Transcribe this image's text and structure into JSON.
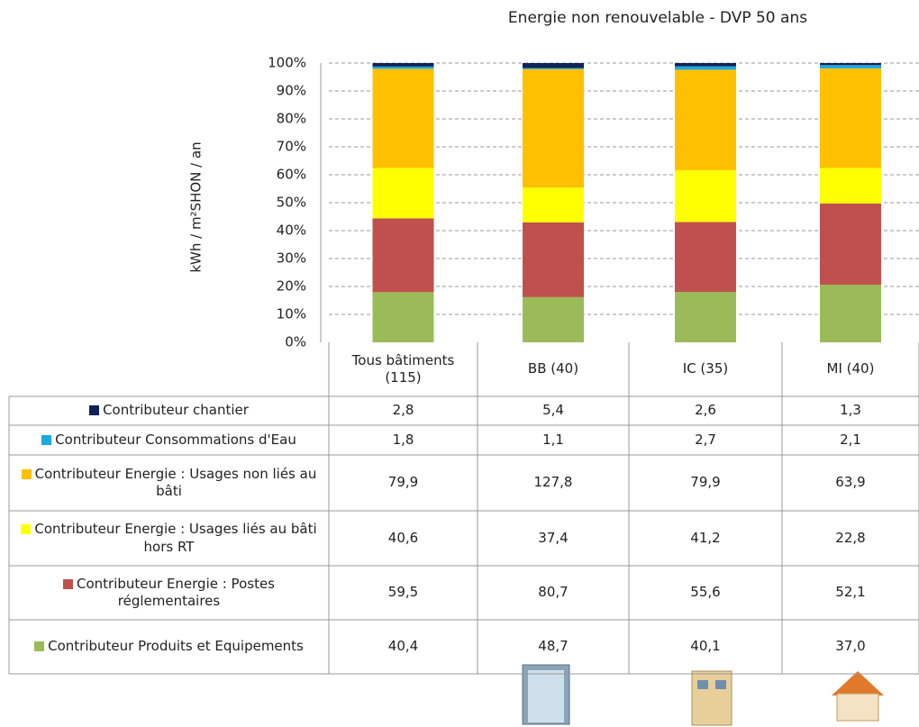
{
  "chart_data": {
    "type": "bar",
    "stacking": "percent",
    "title": "Energie non renouvelable  - DVP 50 ans",
    "y_axis_label": "kWh / m²SHON / an",
    "categories": [
      "Tous bâtiments (115)",
      "BB (40)",
      "IC (35)",
      "MI (40)"
    ],
    "ylim": [
      0,
      100
    ],
    "yticks": [
      {
        "value": 0,
        "label": "0%"
      },
      {
        "value": 10,
        "label": "10%"
      },
      {
        "value": 20,
        "label": "20%"
      },
      {
        "value": 30,
        "label": "30%"
      },
      {
        "value": 40,
        "label": "40%"
      },
      {
        "value": 50,
        "label": "50%"
      },
      {
        "value": 60,
        "label": "60%"
      },
      {
        "value": 70,
        "label": "70%"
      },
      {
        "value": 80,
        "label": "80%"
      },
      {
        "value": 90,
        "label": "90%"
      },
      {
        "value": 100,
        "label": "100%"
      }
    ],
    "grid": true,
    "series": [
      {
        "name": "Contributeur chantier",
        "color": "#0f2456",
        "values": [
          2.8,
          5.4,
          2.6,
          1.3
        ],
        "value_labels": [
          "2,8",
          "5,4",
          "2,6",
          "1,3"
        ]
      },
      {
        "name": "Contributeur Consommations d'Eau",
        "color": "#1ea7e1",
        "values": [
          1.8,
          1.1,
          2.7,
          2.1
        ],
        "value_labels": [
          "1,8",
          "1,1",
          "2,7",
          "2,1"
        ]
      },
      {
        "name": "Contributeur Energie : Usages non liés au bâti",
        "color": "#ffc000",
        "values": [
          79.9,
          127.8,
          79.9,
          63.9
        ],
        "value_labels": [
          "79,9",
          "127,8",
          "79,9",
          "63,9"
        ]
      },
      {
        "name": "Contributeur Energie : Usages liés au bâti hors RT",
        "color": "#ffff00",
        "values": [
          40.6,
          37.4,
          41.2,
          22.8
        ],
        "value_labels": [
          "40,6",
          "37,4",
          "41,2",
          "22,8"
        ]
      },
      {
        "name": "Contributeur Energie : Postes réglementaires",
        "color": "#c0504d",
        "values": [
          59.5,
          80.7,
          55.6,
          52.1
        ],
        "value_labels": [
          "59,5",
          "80,7",
          "55,6",
          "52,1"
        ]
      },
      {
        "name": "Contributeur Produits et Equipements",
        "color": "#9bbb59",
        "values": [
          40.4,
          48.7,
          40.1,
          37.0
        ],
        "value_labels": [
          "40,4",
          "48,7",
          "40,1",
          "37,0"
        ]
      }
    ]
  }
}
